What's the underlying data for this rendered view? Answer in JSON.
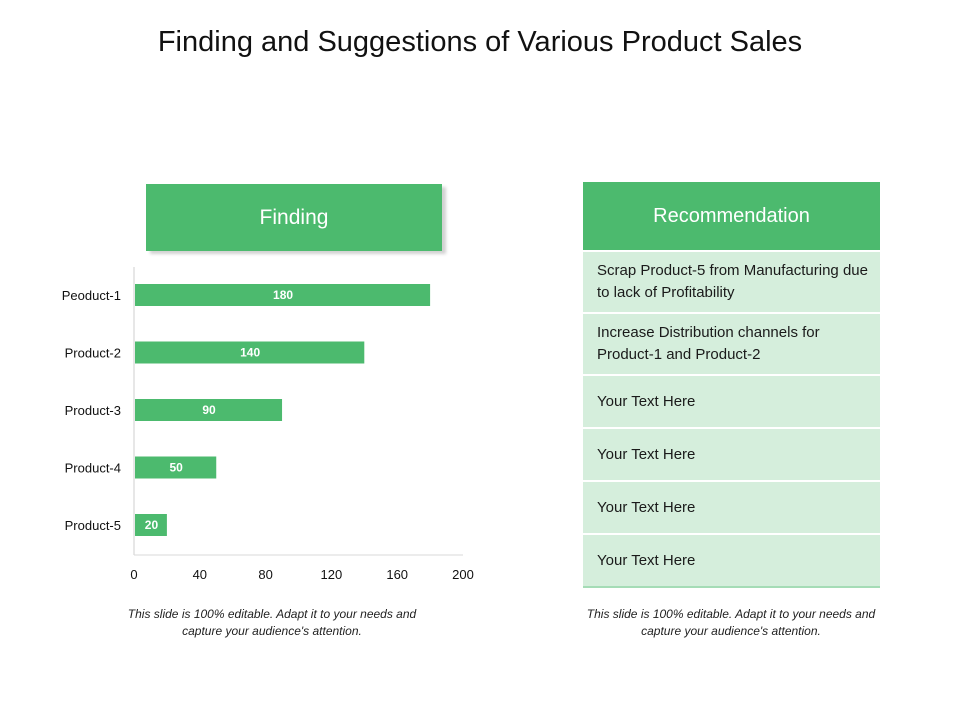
{
  "title": "Finding and Suggestions of Various Product Sales",
  "finding": {
    "header": "Finding"
  },
  "recommendation": {
    "header": "Recommendation",
    "items": [
      "Scrap Product-5 from Manufacturing due to lack of Profitability",
      "Increase Distribution channels for Product-1 and Product-2",
      "Your Text Here",
      "Your Text Here",
      "Your Text Here",
      "Your Text Here"
    ]
  },
  "notes": {
    "left": "This slide is 100% editable. Adapt it to your needs and capture your audience's attention.",
    "right": "This slide is 100% editable. Adapt it to your needs and capture your audience's attention."
  },
  "colors": {
    "accent": "#4cba6e",
    "row_bg": "#d5eedc"
  },
  "chart_data": {
    "type": "bar",
    "orientation": "horizontal",
    "categories": [
      "Peoduct-1",
      "Product-2",
      "Product-3",
      "Product-4",
      "Product-5"
    ],
    "values": [
      180,
      140,
      90,
      50,
      20
    ],
    "data_labels": [
      "180",
      "140",
      "90",
      "50",
      "20"
    ],
    "xlim": [
      0,
      200
    ],
    "xticks": [
      "0",
      "40",
      "80",
      "120",
      "160",
      "200"
    ],
    "grid": false,
    "legend": "none"
  }
}
